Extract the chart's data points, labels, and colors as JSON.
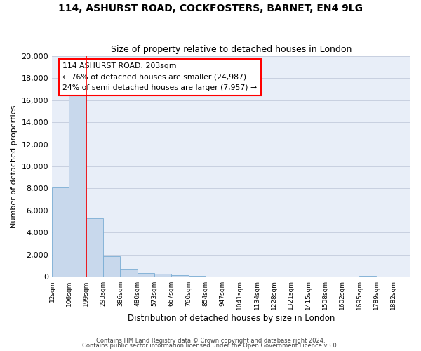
{
  "title1": "114, ASHURST ROAD, COCKFOSTERS, BARNET, EN4 9LG",
  "title2": "Size of property relative to detached houses in London",
  "xlabel": "Distribution of detached houses by size in London",
  "ylabel": "Number of detached properties",
  "bar_color": "#c8d8ec",
  "bar_edgecolor": "#7aadd4",
  "grid_color": "#c8d0e0",
  "background_color": "#e8eef8",
  "bin_labels": [
    "12sqm",
    "106sqm",
    "199sqm",
    "293sqm",
    "386sqm",
    "480sqm",
    "573sqm",
    "667sqm",
    "760sqm",
    "854sqm",
    "947sqm",
    "1041sqm",
    "1134sqm",
    "1228sqm",
    "1321sqm",
    "1415sqm",
    "1508sqm",
    "1602sqm",
    "1695sqm",
    "1789sqm",
    "1882sqm"
  ],
  "bar_heights": [
    8100,
    16550,
    5300,
    1850,
    700,
    320,
    270,
    150,
    100,
    0,
    0,
    0,
    0,
    0,
    0,
    0,
    0,
    0,
    120,
    0,
    0
  ],
  "red_line_bin": 2,
  "annotation_title": "114 ASHURST ROAD: 203sqm",
  "annotation_line1": "← 76% of detached houses are smaller (24,987)",
  "annotation_line2": "24% of semi-detached houses are larger (7,957) →",
  "ylim": [
    0,
    20000
  ],
  "yticks": [
    0,
    2000,
    4000,
    6000,
    8000,
    10000,
    12000,
    14000,
    16000,
    18000,
    20000
  ],
  "footer1": "Contains HM Land Registry data © Crown copyright and database right 2024.",
  "footer2": "Contains public sector information licensed under the Open Government Licence v3.0."
}
